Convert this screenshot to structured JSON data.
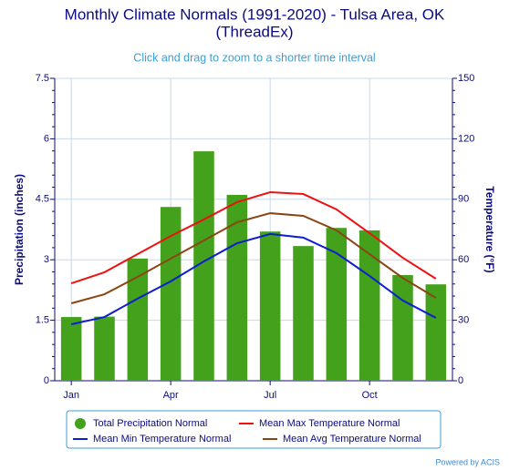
{
  "chart_data": {
    "type": "bar",
    "title": "Monthly Climate Normals (1991-2020) - Tulsa Area, OK",
    "title_line2": "(ThreadEx)",
    "subtitle": "Click and drag to zoom to a shorter time interval",
    "y_label": "Precipitation (inches)",
    "y2_label": "Temperature (°F)",
    "credit": "Powered by ACIS",
    "categories": [
      "Jan",
      null,
      null,
      "Apr",
      null,
      null,
      "Jul",
      null,
      null,
      "Oct",
      null,
      null
    ],
    "ylim": [
      0,
      7.5
    ],
    "yticks": [
      0,
      1.5,
      3,
      4.5,
      6,
      7.5
    ],
    "y2lim": [
      0,
      150
    ],
    "y2ticks": [
      0,
      30,
      60,
      90,
      120,
      150
    ],
    "grid": true,
    "legend": "bottom",
    "series": [
      {
        "name": "Total Precipitation Normal",
        "type": "bar",
        "axis": "y",
        "color": "#43a11c",
        "values": [
          1.58,
          1.59,
          3.03,
          4.31,
          5.69,
          4.61,
          3.7,
          3.34,
          3.79,
          3.73,
          2.62,
          2.39
        ]
      },
      {
        "name": "Mean Max Temperature Normal",
        "type": "line",
        "axis": "y2",
        "color": "#ee1111",
        "values": [
          48.3,
          53.8,
          62.8,
          71.8,
          80.0,
          88.6,
          93.5,
          92.6,
          85.0,
          73.2,
          61.0,
          50.6
        ]
      },
      {
        "name": "Mean Min Temperature Normal",
        "type": "line",
        "axis": "y2",
        "color": "#0b1fd0",
        "values": [
          28.0,
          31.6,
          40.7,
          49.3,
          59.2,
          68.2,
          72.8,
          71.0,
          63.3,
          52.0,
          39.8,
          31.2
        ]
      },
      {
        "name": "Mean Avg Temperature Normal",
        "type": "line",
        "axis": "y2",
        "color": "#8b4513",
        "values": [
          38.4,
          42.9,
          51.5,
          60.6,
          69.6,
          78.6,
          83.1,
          81.8,
          74.6,
          62.8,
          51.0,
          41.1
        ]
      }
    ]
  }
}
